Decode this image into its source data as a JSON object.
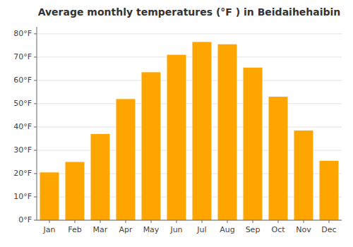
{
  "chart_data": {
    "type": "bar",
    "title": "Average monthly temperatures (°F ) in Beidaihehaibin",
    "categories": [
      "Jan",
      "Feb",
      "Mar",
      "Apr",
      "May",
      "Jun",
      "Jul",
      "Aug",
      "Sep",
      "Oct",
      "Nov",
      "Dec"
    ],
    "values": [
      20.5,
      25.0,
      37.0,
      52.0,
      63.5,
      71.0,
      76.5,
      75.5,
      65.5,
      53.0,
      38.5,
      25.5
    ],
    "color": "#FFA500",
    "ylim": [
      0,
      83
    ],
    "yticks": [
      {
        "value": 0,
        "label": "0°F"
      },
      {
        "value": 10,
        "label": "10°F"
      },
      {
        "value": 20,
        "label": "20°F"
      },
      {
        "value": 30,
        "label": "30°F"
      },
      {
        "value": 40,
        "label": "40°F"
      },
      {
        "value": 50,
        "label": "50°F"
      },
      {
        "value": 60,
        "label": "60°F"
      },
      {
        "value": 70,
        "label": "70°F"
      },
      {
        "value": 80,
        "label": "80°F"
      }
    ],
    "grid": true
  }
}
